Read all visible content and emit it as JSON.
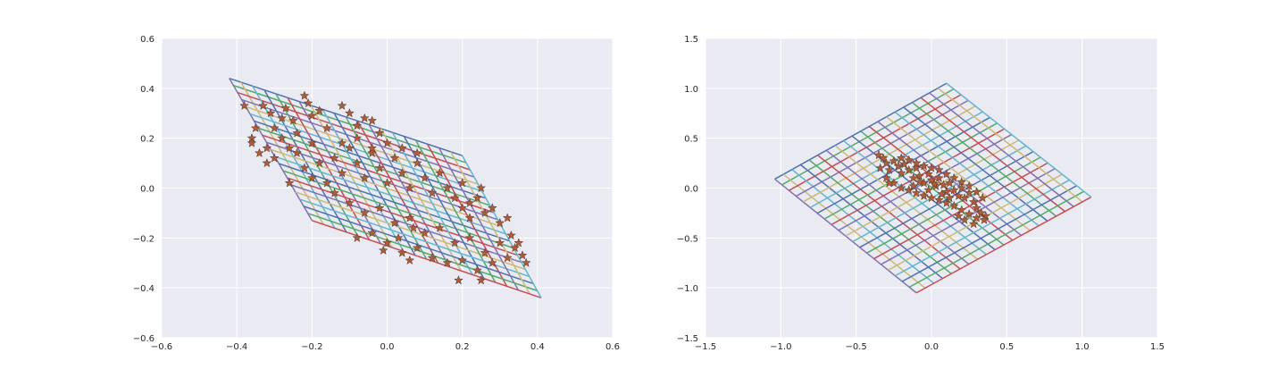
{
  "chart_data": [
    {
      "type": "line",
      "title": "",
      "xlabel": "",
      "ylabel": "",
      "xlim": [
        -0.6,
        0.6
      ],
      "ylim": [
        -0.6,
        0.6
      ],
      "xticks": [
        -0.6,
        -0.4,
        -0.2,
        0.0,
        0.2,
        0.4,
        0.6
      ],
      "yticks": [
        -0.6,
        -0.4,
        -0.2,
        0.0,
        0.2,
        0.4,
        0.6
      ],
      "xtick_labels": [
        "−0.6",
        "−0.4",
        "−0.2",
        "0.0",
        "0.2",
        "0.4",
        "0.6"
      ],
      "ytick_labels": [
        "−0.6",
        "−0.4",
        "−0.2",
        "0.0",
        "0.2",
        "0.4",
        "0.6"
      ],
      "grid": true,
      "style": "seaborn-darkgrid",
      "mesh": {
        "description_corners": "parallelogram grid",
        "corners": [
          [
            -0.42,
            0.44
          ],
          [
            0.2,
            0.13
          ],
          [
            0.41,
            -0.44
          ],
          [
            -0.2,
            -0.13
          ]
        ],
        "divisions": 20,
        "line_colors": [
          "#4C72B0",
          "#55A868",
          "#C44E52",
          "#8172B2",
          "#CCB974",
          "#64B5CD"
        ]
      },
      "scatter": {
        "marker": "star",
        "color": "#B05A38",
        "points": [
          [
            -0.38,
            0.33
          ],
          [
            -0.35,
            0.24
          ],
          [
            -0.36,
            0.2
          ],
          [
            -0.34,
            0.14
          ],
          [
            -0.32,
            0.1
          ],
          [
            -0.36,
            0.18
          ],
          [
            -0.3,
            0.12
          ],
          [
            -0.33,
            0.33
          ],
          [
            -0.31,
            0.3
          ],
          [
            -0.28,
            0.28
          ],
          [
            -0.26,
            0.02
          ],
          [
            -0.27,
            0.32
          ],
          [
            -0.25,
            0.27
          ],
          [
            -0.22,
            0.37
          ],
          [
            -0.21,
            0.34
          ],
          [
            -0.2,
            0.29
          ],
          [
            -0.18,
            0.31
          ],
          [
            -0.16,
            0.24
          ],
          [
            -0.12,
            0.33
          ],
          [
            -0.1,
            0.3
          ],
          [
            -0.08,
            0.25
          ],
          [
            -0.06,
            0.28
          ],
          [
            -0.04,
            0.27
          ],
          [
            -0.02,
            0.22
          ],
          [
            -0.24,
            0.14
          ],
          [
            -0.22,
            0.08
          ],
          [
            -0.2,
            0.04
          ],
          [
            -0.18,
            0.1
          ],
          [
            -0.16,
            0.02
          ],
          [
            -0.14,
            0.12
          ],
          [
            -0.12,
            0.06
          ],
          [
            -0.1,
            0.16
          ],
          [
            -0.08,
            0.1
          ],
          [
            -0.06,
            0.04
          ],
          [
            -0.04,
            0.14
          ],
          [
            -0.02,
            0.08
          ],
          [
            0.0,
            0.02
          ],
          [
            0.02,
            0.12
          ],
          [
            0.04,
            0.06
          ],
          [
            0.06,
            0.0
          ],
          [
            0.08,
            0.1
          ],
          [
            0.1,
            0.04
          ],
          [
            0.12,
            -0.02
          ],
          [
            0.14,
            0.06
          ],
          [
            0.16,
            0.0
          ],
          [
            0.18,
            -0.04
          ],
          [
            0.2,
            0.02
          ],
          [
            0.22,
            -0.06
          ],
          [
            -0.14,
            -0.02
          ],
          [
            -0.1,
            -0.06
          ],
          [
            -0.06,
            -0.1
          ],
          [
            -0.02,
            -0.08
          ],
          [
            0.02,
            -0.14
          ],
          [
            0.06,
            -0.12
          ],
          [
            0.1,
            -0.18
          ],
          [
            0.14,
            -0.16
          ],
          [
            0.18,
            -0.22
          ],
          [
            0.22,
            -0.2
          ],
          [
            0.26,
            -0.26
          ],
          [
            0.3,
            -0.22
          ],
          [
            0.0,
            -0.22
          ],
          [
            0.04,
            -0.26
          ],
          [
            0.08,
            -0.24
          ],
          [
            -0.04,
            -0.18
          ],
          [
            -0.08,
            -0.2
          ],
          [
            0.12,
            -0.28
          ],
          [
            0.16,
            -0.3
          ],
          [
            0.2,
            -0.29
          ],
          [
            0.24,
            -0.33
          ],
          [
            0.28,
            -0.3
          ],
          [
            0.32,
            -0.28
          ],
          [
            0.34,
            -0.24
          ],
          [
            0.3,
            -0.14
          ],
          [
            0.32,
            -0.12
          ],
          [
            0.33,
            -0.19
          ],
          [
            0.35,
            -0.22
          ],
          [
            0.36,
            -0.27
          ],
          [
            0.37,
            -0.3
          ],
          [
            0.25,
            0.0
          ],
          [
            0.24,
            -0.04
          ],
          [
            0.26,
            -0.1
          ],
          [
            0.28,
            -0.08
          ],
          [
            0.22,
            -0.12
          ],
          [
            0.2,
            -0.08
          ],
          [
            0.19,
            -0.37
          ],
          [
            0.25,
            -0.37
          ],
          [
            0.06,
            -0.29
          ],
          [
            -0.01,
            -0.25
          ],
          [
            0.03,
            -0.2
          ],
          [
            0.07,
            -0.16
          ],
          [
            -0.12,
            0.18
          ],
          [
            -0.08,
            0.2
          ],
          [
            -0.04,
            0.16
          ],
          [
            0.0,
            0.18
          ],
          [
            0.04,
            0.16
          ],
          [
            0.08,
            0.14
          ],
          [
            -0.2,
            0.18
          ],
          [
            -0.24,
            0.22
          ],
          [
            -0.28,
            0.2
          ],
          [
            -0.26,
            0.16
          ],
          [
            -0.3,
            0.24
          ],
          [
            -0.32,
            0.16
          ]
        ]
      }
    },
    {
      "type": "line",
      "title": "",
      "xlabel": "",
      "ylabel": "",
      "xlim": [
        -1.5,
        1.5
      ],
      "ylim": [
        -1.5,
        1.5
      ],
      "xticks": [
        -1.5,
        -1.0,
        -0.5,
        0.0,
        0.5,
        1.0,
        1.5
      ],
      "yticks": [
        -1.5,
        -1.0,
        -0.5,
        0.0,
        0.5,
        1.0,
        1.5
      ],
      "xtick_labels": [
        "−1.5",
        "−1.0",
        "−0.5",
        "0.0",
        "0.5",
        "1.0",
        "1.5"
      ],
      "ytick_labels": [
        "−1.5",
        "−1.0",
        "−0.5",
        "0.0",
        "0.5",
        "1.0",
        "1.5"
      ],
      "grid": true,
      "style": "seaborn-darkgrid",
      "mesh": {
        "corners": [
          [
            -1.04,
            0.09
          ],
          [
            0.1,
            1.05
          ],
          [
            1.06,
            -0.09
          ],
          [
            -0.1,
            -1.05
          ]
        ],
        "divisions": 20,
        "line_colors": [
          "#4C72B0",
          "#55A868",
          "#C44E52",
          "#8172B2",
          "#CCB974",
          "#64B5CD"
        ]
      },
      "scatter": {
        "marker": "star",
        "color": "#B05A38",
        "points": [
          [
            -0.35,
            0.33
          ],
          [
            -0.32,
            0.3
          ],
          [
            -0.3,
            0.25
          ],
          [
            -0.34,
            0.2
          ],
          [
            -0.28,
            0.18
          ],
          [
            -0.25,
            0.27
          ],
          [
            -0.22,
            0.22
          ],
          [
            -0.2,
            0.15
          ],
          [
            -0.18,
            0.24
          ],
          [
            -0.15,
            0.18
          ],
          [
            -0.12,
            0.1
          ],
          [
            -0.1,
            0.2
          ],
          [
            -0.08,
            0.12
          ],
          [
            -0.05,
            0.05
          ],
          [
            -0.02,
            0.14
          ],
          [
            0.0,
            0.08
          ],
          [
            0.03,
            0.02
          ],
          [
            0.05,
            0.1
          ],
          [
            0.08,
            0.03
          ],
          [
            0.1,
            -0.04
          ],
          [
            0.12,
            0.05
          ],
          [
            0.15,
            -0.02
          ],
          [
            0.18,
            -0.08
          ],
          [
            0.2,
            0.0
          ],
          [
            0.22,
            -0.1
          ],
          [
            0.25,
            -0.05
          ],
          [
            0.28,
            -0.14
          ],
          [
            0.3,
            -0.2
          ],
          [
            0.33,
            -0.25
          ],
          [
            0.36,
            -0.28
          ],
          [
            -0.25,
            0.05
          ],
          [
            -0.2,
            0.0
          ],
          [
            -0.15,
            -0.02
          ],
          [
            -0.1,
            -0.05
          ],
          [
            -0.05,
            -0.08
          ],
          [
            0.0,
            -0.1
          ],
          [
            0.05,
            -0.12
          ],
          [
            0.1,
            -0.15
          ],
          [
            0.15,
            -0.18
          ],
          [
            0.2,
            -0.22
          ],
          [
            0.25,
            -0.26
          ],
          [
            0.3,
            -0.3
          ],
          [
            -0.2,
            0.3
          ],
          [
            -0.15,
            0.28
          ],
          [
            -0.1,
            0.25
          ],
          [
            -0.05,
            0.22
          ],
          [
            0.0,
            0.2
          ],
          [
            0.05,
            0.18
          ],
          [
            0.1,
            0.14
          ],
          [
            0.15,
            0.1
          ],
          [
            0.2,
            0.06
          ],
          [
            0.25,
            0.02
          ],
          [
            0.3,
            -0.04
          ],
          [
            0.34,
            -0.1
          ],
          [
            -0.3,
            0.1
          ],
          [
            -0.28,
            0.05
          ],
          [
            0.22,
            -0.32
          ],
          [
            0.18,
            -0.28
          ],
          [
            0.28,
            -0.36
          ],
          [
            0.35,
            -0.32
          ],
          [
            -0.02,
            -0.02
          ],
          [
            0.07,
            -0.06
          ],
          [
            -0.12,
            0.02
          ],
          [
            0.12,
            -0.1
          ],
          [
            0.02,
            0.04
          ],
          [
            -0.08,
            0.06
          ]
        ]
      }
    }
  ]
}
